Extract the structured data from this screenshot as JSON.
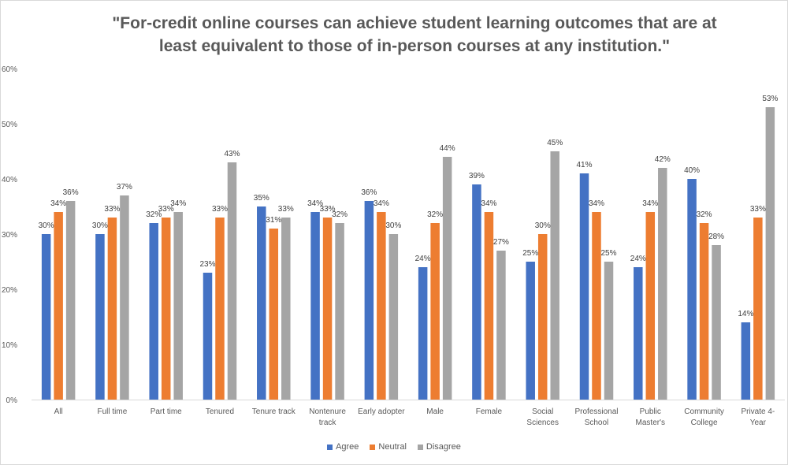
{
  "chart_data": {
    "type": "bar",
    "title": "\"For-credit online courses can achieve student learning outcomes that are at least equivalent to those of in-person courses at any institution.\"",
    "title_lines": [
      "\"For-credit online courses can achieve student learning outcomes that are at",
      "least equivalent to those of in-person courses at any institution.\""
    ],
    "xlabel": "",
    "ylabel": "",
    "ylim": [
      0,
      60
    ],
    "ytick_labels": [
      "0%",
      "10%",
      "20%",
      "30%",
      "40%",
      "50%",
      "60%"
    ],
    "grid": false,
    "legend_position": "bottom",
    "categories": [
      "All",
      "Full time",
      "Part time",
      "Tenured",
      "Tenure track",
      "Nontenure track",
      "Early adopter",
      "Male",
      "Female",
      "Social Sciences",
      "Professional School",
      "Public Master's",
      "Community College",
      "Private 4-Year"
    ],
    "category_label_lines": [
      [
        "All"
      ],
      [
        "Full time"
      ],
      [
        "Part time"
      ],
      [
        "Tenured"
      ],
      [
        "Tenure track"
      ],
      [
        "Nontenure",
        "track"
      ],
      [
        "Early adopter"
      ],
      [
        "Male"
      ],
      [
        "Female"
      ],
      [
        "Social",
        "Sciences"
      ],
      [
        "Professional",
        "School"
      ],
      [
        "Public",
        "Master's"
      ],
      [
        "Community",
        "College"
      ],
      [
        "Private 4-",
        "Year"
      ]
    ],
    "series": [
      {
        "name": "Agree",
        "color": "#4472C4",
        "values": [
          30,
          30,
          32,
          23,
          35,
          34,
          36,
          24,
          39,
          25,
          41,
          24,
          40,
          14
        ]
      },
      {
        "name": "Neutral",
        "color": "#ED7D31",
        "values": [
          34,
          33,
          33,
          33,
          31,
          33,
          34,
          32,
          34,
          30,
          34,
          34,
          32,
          33
        ]
      },
      {
        "name": "Disagree",
        "color": "#A5A5A5",
        "values": [
          36,
          37,
          34,
          43,
          33,
          32,
          30,
          44,
          27,
          45,
          25,
          42,
          28,
          53
        ]
      }
    ],
    "value_label_suffix": "%"
  }
}
